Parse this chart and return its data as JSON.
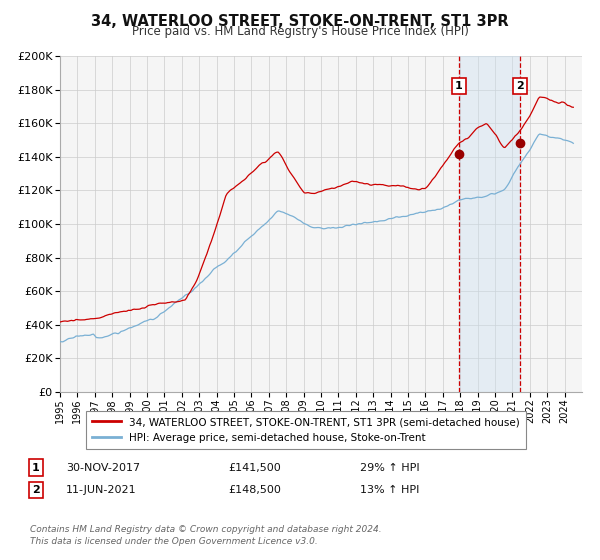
{
  "title": "34, WATERLOO STREET, STOKE-ON-TRENT, ST1 3PR",
  "subtitle": "Price paid vs. HM Land Registry's House Price Index (HPI)",
  "legend_property": "34, WATERLOO STREET, STOKE-ON-TRENT, ST1 3PR (semi-detached house)",
  "legend_hpi": "HPI: Average price, semi-detached house, Stoke-on-Trent",
  "sale1_label": "1",
  "sale1_date": "30-NOV-2017",
  "sale1_price": "£141,500",
  "sale1_hpi": "29% ↑ HPI",
  "sale1_year": 2017.917,
  "sale1_value": 141500,
  "sale2_label": "2",
  "sale2_date": "11-JUN-2021",
  "sale2_price": "£148,500",
  "sale2_hpi": "13% ↑ HPI",
  "sale2_year": 2021.44,
  "sale2_value": 148500,
  "property_color": "#cc0000",
  "hpi_color": "#7ab0d4",
  "marker_color": "#990000",
  "vline_color": "#cc0000",
  "shade_color": "#cce0f0",
  "ylim": [
    0,
    200000
  ],
  "yticks": [
    0,
    20000,
    40000,
    60000,
    80000,
    100000,
    120000,
    140000,
    160000,
    180000,
    200000
  ],
  "grid_color": "#cccccc",
  "background_color": "#ffffff",
  "plot_bg_color": "#f5f5f5",
  "xmin": 1995,
  "xmax": 2025,
  "footer": "Contains HM Land Registry data © Crown copyright and database right 2024.\nThis data is licensed under the Open Government Licence v3.0."
}
